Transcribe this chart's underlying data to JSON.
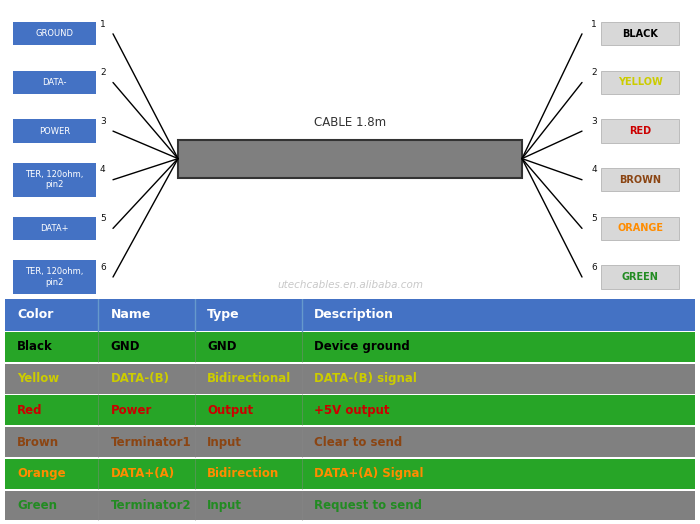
{
  "bg_color": "#ffffff",
  "cable_color": "#7f7f7f",
  "cable_label": "CABLE 1.8m",
  "watermark": "utechcables.en.alibaba.com",
  "left_labels": [
    "GROUND",
    "DATA-",
    "POWER",
    "TER, 120ohm,\npin2",
    "DATA+",
    "TER, 120ohm,\npin2"
  ],
  "left_numbers": [
    "1",
    "2",
    "3",
    "4",
    "5",
    "6"
  ],
  "right_labels": [
    "BLACK",
    "YELLOW",
    "RED",
    "BROWN",
    "ORANGE",
    "GREEN"
  ],
  "right_numbers": [
    "1",
    "2",
    "3",
    "4",
    "5",
    "6"
  ],
  "right_label_colors": [
    "#000000",
    "#cccc00",
    "#cc0000",
    "#8B4513",
    "#FF8C00",
    "#228B22"
  ],
  "left_box_color": "#4472c4",
  "left_text_color": "#ffffff",
  "header_bg": "#4472c4",
  "header_text_color": "#ffffff",
  "table_rows": [
    {
      "color_text": "Black",
      "color_val": "#000000",
      "name": "GND",
      "name_color": "#000000",
      "type": "GND",
      "type_color": "#000000",
      "desc": "Device ground",
      "desc_color": "#000000",
      "row_bg": "#27a527"
    },
    {
      "color_text": "Yellow",
      "color_val": "#cccc00",
      "name": "DATA-(B)",
      "name_color": "#cccc00",
      "type": "Bidirectional",
      "type_color": "#cccc00",
      "desc": "DATA-(B) signal",
      "desc_color": "#cccc00",
      "row_bg": "#808080"
    },
    {
      "color_text": "Red",
      "color_val": "#cc0000",
      "name": "Power",
      "name_color": "#cc0000",
      "type": "Output",
      "type_color": "#cc0000",
      "desc": "+5V output",
      "desc_color": "#cc0000",
      "row_bg": "#27a527"
    },
    {
      "color_text": "Brown",
      "color_val": "#8B4513",
      "name": "Terminator1",
      "name_color": "#8B4513",
      "type": "Input",
      "type_color": "#8B4513",
      "desc": "Clear to send",
      "desc_color": "#8B4513",
      "row_bg": "#808080"
    },
    {
      "color_text": "Orange",
      "color_val": "#FF8C00",
      "name": "DATA+(A)",
      "name_color": "#FF8C00",
      "type": "Bidirection",
      "type_color": "#FF8C00",
      "desc": "DATA+(A) Signal",
      "desc_color": "#FF8C00",
      "row_bg": "#27a527"
    },
    {
      "color_text": "Green",
      "color_val": "#228B22",
      "name": "Terminator2",
      "name_color": "#228B22",
      "type": "Input",
      "type_color": "#228B22",
      "desc": "Request to send",
      "desc_color": "#228B22",
      "row_bg": "#808080"
    }
  ],
  "col_headers": [
    "Color",
    "Name",
    "Type",
    "Description"
  ],
  "col_starts": [
    0.0,
    0.135,
    0.275,
    0.43
  ],
  "col_ends": [
    0.135,
    0.275,
    0.43,
    1.0
  ]
}
